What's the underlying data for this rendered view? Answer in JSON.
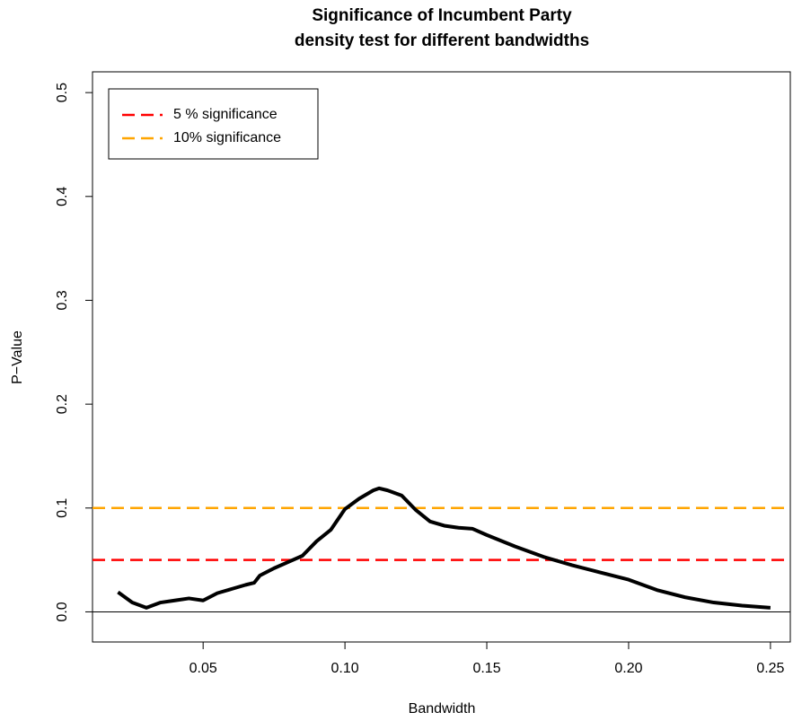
{
  "chart_data": {
    "type": "line",
    "title": [
      "Significance of Incumbent Party",
      "density test for different bandwidths"
    ],
    "x_label": "Bandwidth",
    "y_label": "P−Value",
    "x": [
      0.02,
      0.025,
      0.03,
      0.035,
      0.04,
      0.045,
      0.05,
      0.055,
      0.06,
      0.065,
      0.068,
      0.07,
      0.075,
      0.08,
      0.085,
      0.09,
      0.095,
      0.1,
      0.105,
      0.11,
      0.112,
      0.115,
      0.12,
      0.125,
      0.13,
      0.135,
      0.14,
      0.145,
      0.15,
      0.16,
      0.17,
      0.18,
      0.19,
      0.2,
      0.21,
      0.22,
      0.23,
      0.24,
      0.25
    ],
    "series": [
      {
        "color": "#000000",
        "values": [
          0.019,
          0.009,
          0.004,
          0.009,
          0.011,
          0.013,
          0.011,
          0.018,
          0.022,
          0.026,
          0.028,
          0.035,
          0.042,
          0.048,
          0.054,
          0.068,
          0.079,
          0.099,
          0.109,
          0.117,
          0.119,
          0.117,
          0.112,
          0.098,
          0.087,
          0.083,
          0.081,
          0.08,
          0.074,
          0.063,
          0.053,
          0.045,
          0.038,
          0.031,
          0.021,
          0.014,
          0.009,
          0.006,
          0.004
        ]
      }
    ],
    "reference_lines": [
      {
        "name": "5 % significance",
        "value": 0.05,
        "color": "#ff0000"
      },
      {
        "name": "10% significance",
        "value": 0.1,
        "color": "#ffa500"
      }
    ],
    "hline": 0,
    "xlim": [
      0.011,
      0.257
    ],
    "ylim": [
      -0.029,
      0.52
    ],
    "xticks": [
      0.05,
      {
        "value": 0.1,
        "label": "0.10"
      },
      0.15,
      {
        "value": 0.2,
        "label": "0.20"
      },
      0.25
    ],
    "yticks": [
      {
        "value": 0,
        "label": "0.0"
      },
      0.1,
      0.2,
      0.3,
      0.4,
      0.5
    ],
    "legend": "top-left"
  }
}
